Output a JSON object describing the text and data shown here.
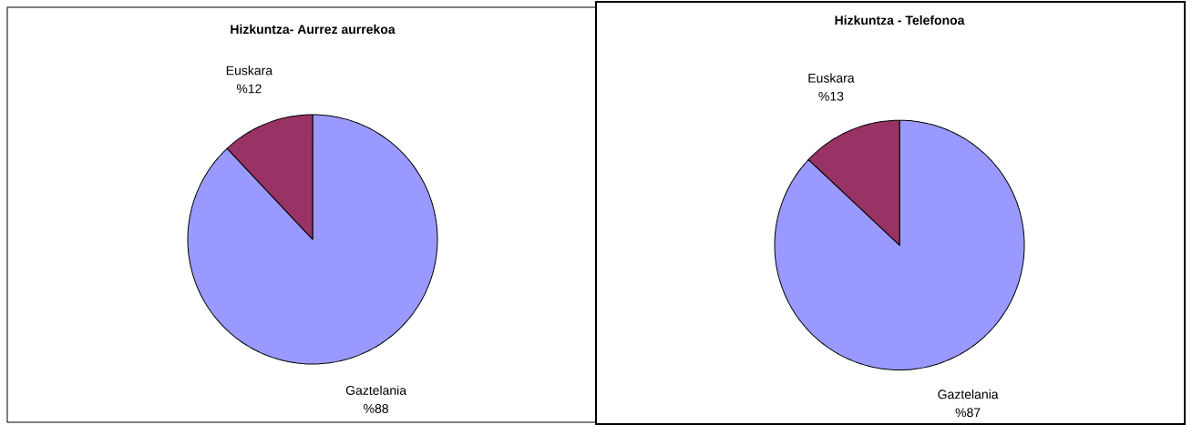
{
  "chart_data": [
    {
      "type": "pie",
      "title": "Hizkuntza- Aurrez aurrekoa",
      "categories": [
        "Gaztelania",
        "Euskara"
      ],
      "values": [
        88,
        12
      ],
      "value_labels": [
        "%88",
        "%12"
      ],
      "colors": [
        "#9999ff",
        "#993366"
      ]
    },
    {
      "type": "pie",
      "title": "Hizkuntza - Telefonoa",
      "categories": [
        "Gaztelania",
        "Euskara"
      ],
      "values": [
        87,
        13
      ],
      "value_labels": [
        "%87",
        "%13"
      ],
      "colors": [
        "#9999ff",
        "#993366"
      ]
    }
  ]
}
